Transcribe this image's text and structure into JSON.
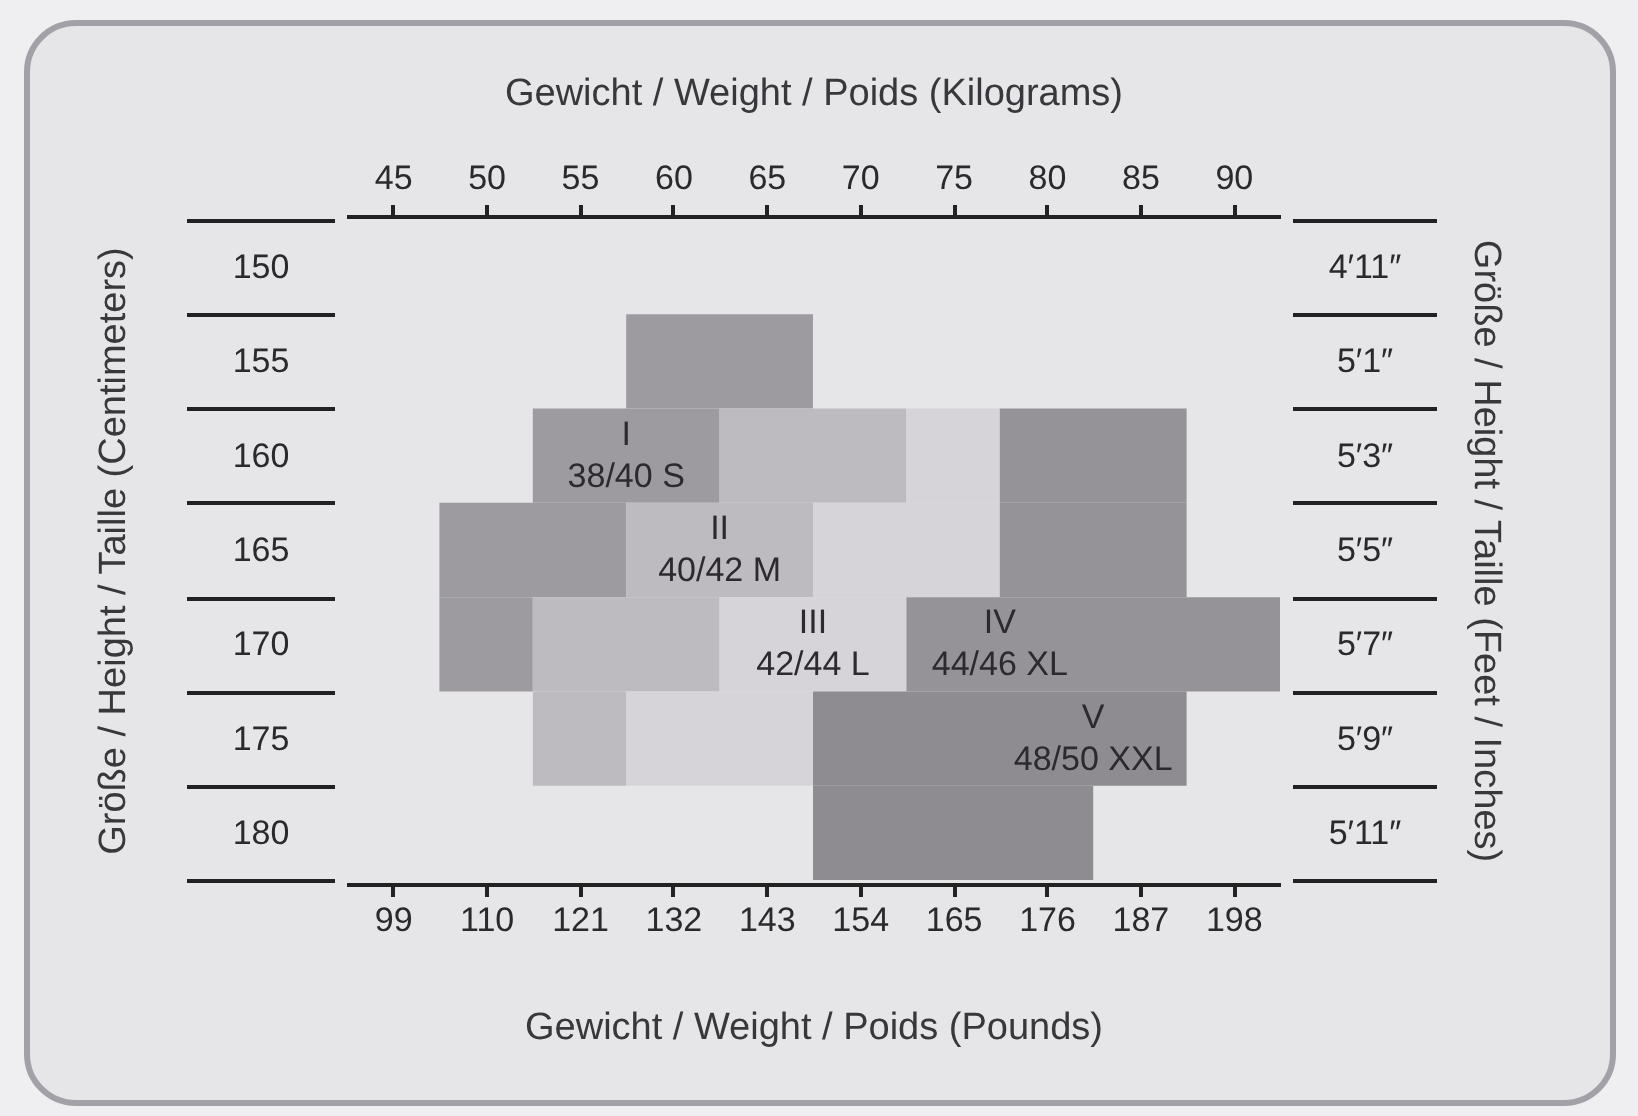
{
  "chart_data": {
    "type": "bar",
    "orientation": "horizontal",
    "x2label": "Gewicht / Weight / Poids (Kilograms)",
    "xlabel": "Gewicht / Weight / Poids (Pounds)",
    "ylabel": "Größe / Height / Taille (Centimeters)",
    "y2label": "Größe / Height / Taille (Feet / Inches)",
    "categories": [
      "150",
      "155",
      "160",
      "165",
      "170",
      "175",
      "180"
    ],
    "y2_categories": [
      "4′11″",
      "5′1″",
      "5′3″",
      "5′5″",
      "5′7″",
      "5′9″",
      "5′11″"
    ],
    "xlim": [
      93.5,
      203.5
    ],
    "xticks": [
      99,
      110,
      121,
      132,
      143,
      154,
      165,
      176,
      187,
      198
    ],
    "x2lim": [
      42.5,
      92.5
    ],
    "x2ticks": [
      45,
      50,
      55,
      60,
      65,
      70,
      75,
      80,
      85,
      90
    ],
    "series": [
      {
        "color": "#9d9ba0",
        "values": [
          null,
          22,
          22,
          22,
          11,
          null,
          null
        ],
        "base": [
          null,
          126.5,
          115.5,
          104.5,
          104.5,
          null,
          null
        ]
      },
      {
        "color": "#bdbbc0",
        "values": [
          null,
          null,
          22,
          22,
          22,
          11,
          null
        ],
        "base": [
          null,
          null,
          137.5,
          126.5,
          115.5,
          115.5,
          null
        ]
      },
      {
        "color": "#d6d4d8",
        "values": [
          null,
          null,
          11,
          22,
          22,
          22,
          null
        ],
        "base": [
          null,
          null,
          159.5,
          148.5,
          137.5,
          126.5,
          null
        ]
      },
      {
        "color": "#959398",
        "values": [
          null,
          null,
          22,
          22,
          44,
          null,
          null
        ],
        "base": [
          null,
          null,
          170.5,
          170.5,
          159.5,
          null,
          null
        ]
      },
      {
        "color": "#8e8c91",
        "values": [
          null,
          null,
          null,
          null,
          null,
          44,
          33
        ],
        "base": [
          null,
          null,
          null,
          null,
          null,
          148.5,
          148.5
        ]
      }
    ],
    "annotations": [
      {
        "text": "I\n38/40 S",
        "x": 126.5,
        "y": "160"
      },
      {
        "text": "II\n40/42 M",
        "x": 137.5,
        "y": "165"
      },
      {
        "text": "III\n42/44 L",
        "x": 148.5,
        "y": "170"
      },
      {
        "text": "IV\n44/46 XL",
        "x": 170.5,
        "y": "170"
      },
      {
        "text": "V\n48/50 XXL",
        "x": 181.5,
        "y": "175"
      }
    ]
  }
}
